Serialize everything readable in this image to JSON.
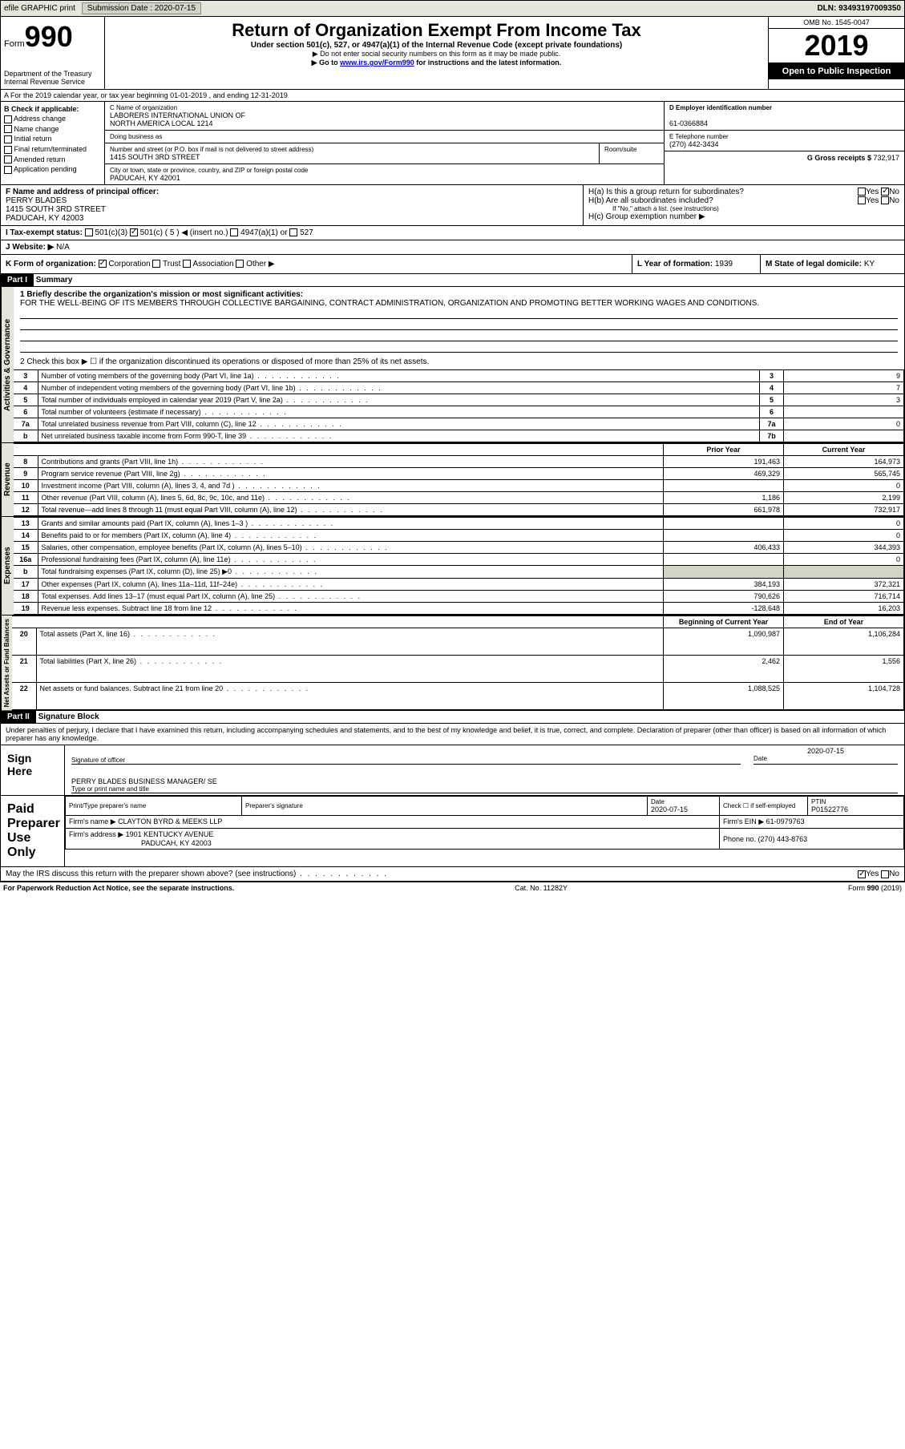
{
  "topbar": {
    "efile": "efile GRAPHIC print",
    "submission_label": "Submission Date : ",
    "submission_date": "2020-07-15",
    "dln_label": "DLN: ",
    "dln": "93493197009350"
  },
  "header": {
    "form_label": "Form",
    "form_number": "990",
    "dept": "Department of the Treasury\nInternal Revenue Service",
    "title": "Return of Organization Exempt From Income Tax",
    "sub1": "Under section 501(c), 527, or 4947(a)(1) of the Internal Revenue Code (except private foundations)",
    "sub2": "▶ Do not enter social security numbers on this form as it may be made public.",
    "sub3_pre": "▶ Go to ",
    "sub3_link": "www.irs.gov/Form990",
    "sub3_post": " for instructions and the latest information.",
    "omb": "OMB No. 1545-0047",
    "year": "2019",
    "open": "Open to Public Inspection"
  },
  "row_a": "A For the 2019 calendar year, or tax year beginning 01-01-2019    , and ending 12-31-2019",
  "b": {
    "label": "B Check if applicable:",
    "opts": [
      "Address change",
      "Name change",
      "Initial return",
      "Final return/terminated",
      "Amended return",
      "Application pending"
    ]
  },
  "c": {
    "name_label": "C Name of organization",
    "name": "LABORERS INTERNATIONAL UNION OF\nNORTH AMERICA LOCAL 1214",
    "dba_label": "Doing business as",
    "dba": "",
    "street_label": "Number and street (or P.O. box if mail is not delivered to street address)",
    "room_label": "Room/suite",
    "street": "1415 SOUTH 3RD STREET",
    "city_label": "City or town, state or province, country, and ZIP or foreign postal code",
    "city": "PADUCAH, KY  42001"
  },
  "d": {
    "ein_label": "D Employer identification number",
    "ein": "61-0366884",
    "phone_label": "E Telephone number",
    "phone": "(270) 442-3434",
    "gross_label": "G Gross receipts $ ",
    "gross": "732,917"
  },
  "f": {
    "label": "F  Name and address of principal officer:",
    "name": "PERRY BLADES",
    "addr1": "1415 SOUTH 3RD STREET",
    "addr2": "PADUCAH, KY  42003"
  },
  "h": {
    "a": "H(a)  Is this a group return for subordinates?",
    "b": "H(b)  Are all subordinates included?",
    "b_note": "If \"No,\" attach a list. (see instructions)",
    "c": "H(c)  Group exemption number ▶",
    "yes": "Yes",
    "no": "No"
  },
  "i": {
    "label": "I  Tax-exempt status:",
    "o1": "501(c)(3)",
    "o2": "501(c) ( 5 ) ◀ (insert no.)",
    "o3": "4947(a)(1) or",
    "o4": "527"
  },
  "j": {
    "label": "J  Website: ▶",
    "val": "N/A"
  },
  "k": {
    "label": "K Form of organization:",
    "o1": "Corporation",
    "o2": "Trust",
    "o3": "Association",
    "o4": "Other ▶"
  },
  "l": {
    "label": "L Year of formation: ",
    "val": "1939"
  },
  "m": {
    "label": "M State of legal domicile: ",
    "val": "KY"
  },
  "part1": {
    "header": "Part I",
    "title": "Summary",
    "q1": "1  Briefly describe the organization's mission or most significant activities:",
    "q1_ans": "FOR THE WELL-BEING OF ITS MEMBERS THROUGH COLLECTIVE BARGAINING, CONTRACT ADMINISTRATION, ORGANIZATION AND PROMOTING BETTER WORKING WAGES AND CONDITIONS.",
    "q2": "2   Check this box ▶ ☐  if the organization discontinued its operations or disposed of more than 25% of its net assets.",
    "sections": {
      "activities": "Activities & Governance",
      "revenue": "Revenue",
      "expenses": "Expenses",
      "netassets": "Net Assets or Fund Balances"
    },
    "col_headers": {
      "prior": "Prior Year",
      "current": "Current Year",
      "begin": "Beginning of Current Year",
      "end": "End of Year"
    },
    "rows_act": [
      {
        "n": "3",
        "t": "Number of voting members of the governing body (Part VI, line 1a)",
        "box": "3",
        "v": "9"
      },
      {
        "n": "4",
        "t": "Number of independent voting members of the governing body (Part VI, line 1b)",
        "box": "4",
        "v": "7"
      },
      {
        "n": "5",
        "t": "Total number of individuals employed in calendar year 2019 (Part V, line 2a)",
        "box": "5",
        "v": "3"
      },
      {
        "n": "6",
        "t": "Total number of volunteers (estimate if necessary)",
        "box": "6",
        "v": ""
      },
      {
        "n": "7a",
        "t": "Total unrelated business revenue from Part VIII, column (C), line 12",
        "box": "7a",
        "v": "0"
      },
      {
        "n": "b",
        "t": "Net unrelated business taxable income from Form 990-T, line 39",
        "box": "7b",
        "v": ""
      }
    ],
    "rows_rev": [
      {
        "n": "8",
        "t": "Contributions and grants (Part VIII, line 1h)",
        "p": "191,463",
        "c": "164,973"
      },
      {
        "n": "9",
        "t": "Program service revenue (Part VIII, line 2g)",
        "p": "469,329",
        "c": "565,745"
      },
      {
        "n": "10",
        "t": "Investment income (Part VIII, column (A), lines 3, 4, and 7d )",
        "p": "",
        "c": "0"
      },
      {
        "n": "11",
        "t": "Other revenue (Part VIII, column (A), lines 5, 6d, 8c, 9c, 10c, and 11e)",
        "p": "1,186",
        "c": "2,199"
      },
      {
        "n": "12",
        "t": "Total revenue—add lines 8 through 11 (must equal Part VIII, column (A), line 12)",
        "p": "661,978",
        "c": "732,917"
      }
    ],
    "rows_exp": [
      {
        "n": "13",
        "t": "Grants and similar amounts paid (Part IX, column (A), lines 1–3 )",
        "p": "",
        "c": "0"
      },
      {
        "n": "14",
        "t": "Benefits paid to or for members (Part IX, column (A), line 4)",
        "p": "",
        "c": "0"
      },
      {
        "n": "15",
        "t": "Salaries, other compensation, employee benefits (Part IX, column (A), lines 5–10)",
        "p": "406,433",
        "c": "344,393"
      },
      {
        "n": "16a",
        "t": "Professional fundraising fees (Part IX, column (A), line 11e)",
        "p": "",
        "c": "0"
      },
      {
        "n": "b",
        "t": "Total fundraising expenses (Part IX, column (D), line 25) ▶0",
        "p": "shaded",
        "c": "shaded"
      },
      {
        "n": "17",
        "t": "Other expenses (Part IX, column (A), lines 11a–11d, 11f–24e)",
        "p": "384,193",
        "c": "372,321"
      },
      {
        "n": "18",
        "t": "Total expenses. Add lines 13–17 (must equal Part IX, column (A), line 25)",
        "p": "790,626",
        "c": "716,714"
      },
      {
        "n": "19",
        "t": "Revenue less expenses. Subtract line 18 from line 12",
        "p": "-128,648",
        "c": "16,203"
      }
    ],
    "rows_net": [
      {
        "n": "20",
        "t": "Total assets (Part X, line 16)",
        "p": "1,090,987",
        "c": "1,106,284"
      },
      {
        "n": "21",
        "t": "Total liabilities (Part X, line 26)",
        "p": "2,462",
        "c": "1,556"
      },
      {
        "n": "22",
        "t": "Net assets or fund balances. Subtract line 21 from line 20",
        "p": "1,088,525",
        "c": "1,104,728"
      }
    ]
  },
  "part2": {
    "header": "Part II",
    "title": "Signature Block",
    "decl": "Under penalties of perjury, I declare that I have examined this return, including accompanying schedules and statements, and to the best of my knowledge and belief, it is true, correct, and complete. Declaration of preparer (other than officer) is based on all information of which preparer has any knowledge.",
    "sign_here": "Sign Here",
    "sig_officer": "Signature of officer",
    "date": "Date",
    "sig_date": "2020-07-15",
    "officer_name": "PERRY BLADES  BUSINESS MANAGER/ SE",
    "type_name": "Type or print name and title",
    "paid": "Paid Preparer Use Only",
    "prep_name_label": "Print/Type preparer's name",
    "prep_sig_label": "Preparer's signature",
    "prep_date_label": "Date",
    "prep_date": "2020-07-15",
    "check_self": "Check ☐ if self-employed",
    "ptin_label": "PTIN",
    "ptin": "P01522776",
    "firm_name_label": "Firm's name    ▶ ",
    "firm_name": "CLAYTON BYRD & MEEKS LLP",
    "firm_ein_label": "Firm's EIN ▶ ",
    "firm_ein": "61-0979763",
    "firm_addr_label": "Firm's address ▶ ",
    "firm_addr": "1901 KENTUCKY AVENUE",
    "firm_city": "PADUCAH, KY  42003",
    "phone_label": "Phone no. ",
    "phone": "(270) 443-8763",
    "discuss": "May the IRS discuss this return with the preparer shown above? (see instructions)",
    "yes": "Yes",
    "no": "No"
  },
  "footer": {
    "left": "For Paperwork Reduction Act Notice, see the separate instructions.",
    "mid": "Cat. No. 11282Y",
    "right": "Form 990 (2019)"
  }
}
